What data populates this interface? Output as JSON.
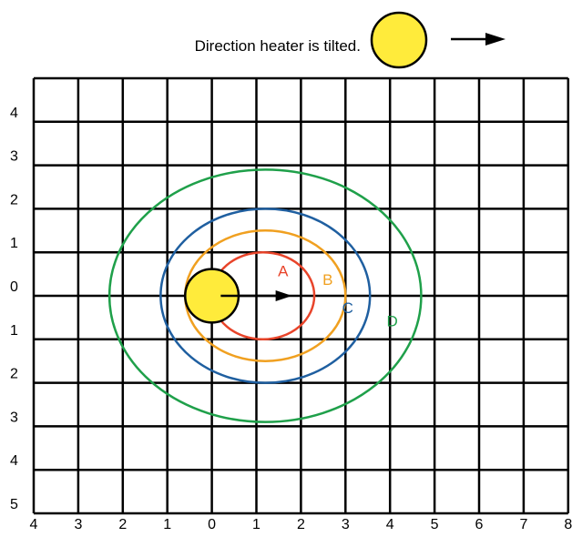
{
  "legend": {
    "caption": "Direction heater is tilted.",
    "heater_color": "#ffeb3b",
    "arrow_icon": "right-arrow-icon"
  },
  "grid": {
    "columns": 12,
    "rows": 10,
    "x_labels": [
      "4",
      "3",
      "2",
      "1",
      "0",
      "1",
      "2",
      "3",
      "4",
      "5",
      "6",
      "7",
      "8"
    ],
    "y_labels": [
      "4",
      "3",
      "2",
      "1",
      "0",
      "1",
      "2",
      "3",
      "4",
      "5"
    ]
  },
  "heater": {
    "x": 0,
    "y": 0,
    "color": "#ffeb3b"
  },
  "tilt_arrow": {
    "from_x": 0.2,
    "to_x": 1.8,
    "y": 0
  },
  "contours": [
    {
      "label": "A",
      "color": "#e8442a",
      "center_x": 1.15,
      "center_y": 0,
      "radius_x": 1.15,
      "radius_y": 1.0,
      "label_x": 1.6,
      "label_y": 0.45
    },
    {
      "label": "B",
      "color": "#f0a020",
      "center_x": 1.2,
      "center_y": 0,
      "radius_x": 1.8,
      "radius_y": 1.5,
      "label_x": 2.6,
      "label_y": 0.25
    },
    {
      "label": "C",
      "color": "#1f5fa0",
      "center_x": 1.2,
      "center_y": 0,
      "radius_x": 2.35,
      "radius_y": 2.0,
      "label_x": 3.05,
      "label_y": -0.4
    },
    {
      "label": "D",
      "color": "#1fa04a",
      "center_x": 1.2,
      "center_y": 0,
      "radius_x": 3.5,
      "radius_y": 2.9,
      "label_x": 4.05,
      "label_y": -0.7
    }
  ]
}
